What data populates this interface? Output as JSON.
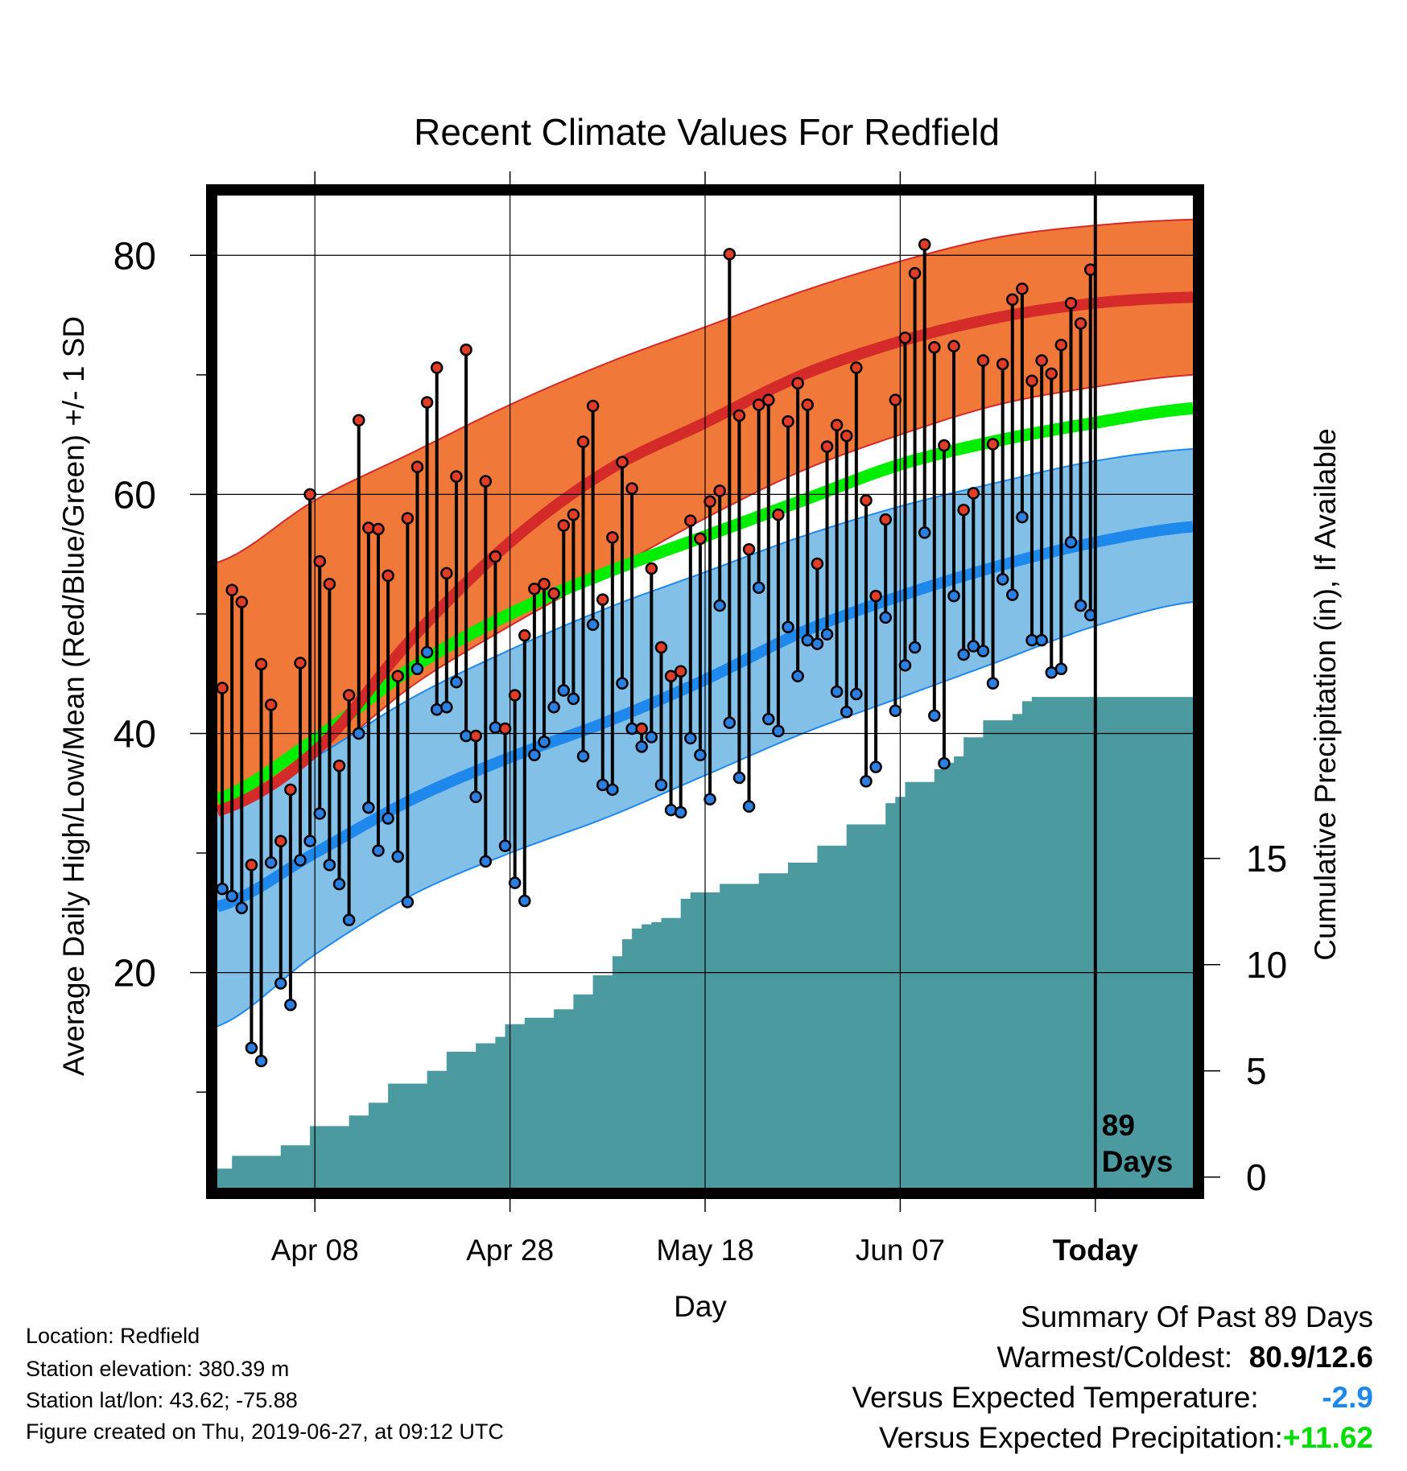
{
  "chart_data": {
    "type": "line",
    "title": "Recent Climate Values For Redfield",
    "xlabel": "Day",
    "ylabel": "Average Daily High/Low/Mean (Red/Blue/Green) +/- 1 SD",
    "y2label": "Cumulative Precipitation (in), If Available",
    "x_tick_labels": [
      "Apr 08",
      "Apr 28",
      "May 18",
      "Jun 07",
      "Today"
    ],
    "x_tick_days": [
      10,
      30,
      50,
      70,
      90
    ],
    "xlim": [
      0,
      100
    ],
    "y_ticks": [
      20,
      40,
      60,
      80
    ],
    "ylim": [
      2,
      85
    ],
    "y2_ticks": [
      0,
      5,
      10,
      15
    ],
    "y2lim": [
      -0.5,
      46.2
    ],
    "today_day": 90,
    "today_label": "89 Days",
    "grid": true,
    "colors": {
      "high_band": "#f07838",
      "high_mean": "#d42a2a",
      "low_band": "#82c0e8",
      "low_mean": "#1e88ec",
      "mean_line": "#00ee00",
      "precip": "#4a9aa0",
      "high_dot": "#e03c28",
      "low_dot": "#2a7fe0"
    },
    "normals": {
      "days": [
        0,
        10,
        20,
        30,
        40,
        50,
        60,
        70,
        80,
        90,
        100
      ],
      "high_mean": [
        33.5,
        38.5,
        48.0,
        56.0,
        62.0,
        66.0,
        70.0,
        72.8,
        74.8,
        76.0,
        76.5
      ],
      "high_upper": [
        54.3,
        59.5,
        63.5,
        67.5,
        71.0,
        74.0,
        77.0,
        79.5,
        81.5,
        82.5,
        83.0
      ],
      "high_lower": [
        33.0,
        37.5,
        44.0,
        49.0,
        53.5,
        58.0,
        62.0,
        65.0,
        67.5,
        69.0,
        70.0
      ],
      "low_mean": [
        25.5,
        30.0,
        34.5,
        38.0,
        41.0,
        44.5,
        48.5,
        51.5,
        54.0,
        56.0,
        57.3
      ],
      "low_upper": [
        33.5,
        38.0,
        43.0,
        47.0,
        50.5,
        53.5,
        56.5,
        59.0,
        61.0,
        62.8,
        63.8
      ],
      "low_lower": [
        15.5,
        21.5,
        26.5,
        30.0,
        33.0,
        36.5,
        40.0,
        43.0,
        46.0,
        49.0,
        51.0
      ],
      "mean": [
        34.5,
        39.5,
        45.5,
        50.0,
        53.5,
        56.5,
        59.5,
        62.5,
        64.5,
        66.0,
        67.2
      ]
    },
    "series": [
      {
        "name": "High",
        "values": [
          43.8,
          52.0,
          51.0,
          29.0,
          45.8,
          42.4,
          31.0,
          35.3,
          45.9,
          60.0,
          54.4,
          52.5,
          37.3,
          43.2,
          66.2,
          57.2,
          57.1,
          53.2,
          44.8,
          58.0,
          62.3,
          67.7,
          70.6,
          53.4,
          61.5,
          72.1,
          39.8,
          61.1,
          54.8,
          40.4,
          43.2,
          48.2,
          52.1,
          52.5,
          51.7,
          57.4,
          58.3,
          64.4,
          67.4,
          51.2,
          56.4,
          62.7,
          60.5,
          40.4,
          53.8,
          47.2,
          44.8,
          45.2,
          57.8,
          56.3,
          59.4,
          60.3,
          80.1,
          66.6,
          55.4,
          67.5,
          67.9,
          58.3,
          66.1,
          69.3,
          67.5,
          54.2,
          64.0,
          65.8,
          64.9,
          70.6,
          59.5,
          51.5,
          57.9,
          67.9,
          73.1,
          78.5,
          80.9,
          72.3,
          64.1,
          72.4,
          58.7,
          60.1,
          71.2,
          64.2,
          70.9,
          76.3,
          77.2,
          69.5,
          71.2,
          70.1,
          72.5,
          76.0,
          74.3,
          78.8
        ]
      },
      {
        "name": "Low",
        "values": [
          27.0,
          26.4,
          25.4,
          13.7,
          12.6,
          29.2,
          19.1,
          17.3,
          29.4,
          31.0,
          33.3,
          29.0,
          27.4,
          24.4,
          40.0,
          33.8,
          30.2,
          32.9,
          29.7,
          25.9,
          45.4,
          46.8,
          42.0,
          42.2,
          44.3,
          39.8,
          34.7,
          29.3,
          40.5,
          30.6,
          27.5,
          26.0,
          38.2,
          39.3,
          42.2,
          43.6,
          42.9,
          38.1,
          49.1,
          35.7,
          35.3,
          44.2,
          40.4,
          38.9,
          39.7,
          35.7,
          33.6,
          33.4,
          39.6,
          38.2,
          34.5,
          50.7,
          40.9,
          36.3,
          33.9,
          52.2,
          41.2,
          40.2,
          48.9,
          44.8,
          47.8,
          47.5,
          48.3,
          43.5,
          41.8,
          43.3,
          36.0,
          37.2,
          49.7,
          41.9,
          45.7,
          47.2,
          56.8,
          41.5,
          37.5,
          51.5,
          46.6,
          47.3,
          46.9,
          44.2,
          52.9,
          51.6,
          58.1,
          47.8,
          47.8,
          45.1,
          45.4,
          56.0,
          50.7,
          49.9
        ]
      },
      {
        "name": "Cumulative Precipitation",
        "days": [
          0,
          1.5,
          2.5,
          6.5,
          7.5,
          9.5,
          10.5,
          13.5,
          15.5,
          16.5,
          17.5,
          18.5,
          21.5,
          23.5,
          26.5,
          28.5,
          29.5,
          31.5,
          34.5,
          35.5,
          36.5,
          38.5,
          39.5,
          40.5,
          41.5,
          42.5,
          43.5,
          44.5,
          45.5,
          46.5,
          47.5,
          48.5,
          49.5,
          50.5,
          51.5,
          52.5,
          55.5,
          56.5,
          58.5,
          59.5,
          61.5,
          63.5,
          64.5,
          66.5,
          67.5,
          68.5,
          69.5,
          70.5,
          73.5,
          74.5,
          75.5,
          76.5,
          77.5,
          78.5,
          79.5,
          81.5,
          82.5,
          83.5,
          89.5,
          100
        ],
        "values": [
          0.4,
          1.0,
          1.0,
          1.5,
          1.5,
          2.4,
          2.4,
          2.9,
          3.5,
          3.5,
          4.4,
          4.4,
          5.0,
          5.9,
          6.3,
          6.6,
          7.2,
          7.5,
          7.9,
          7.9,
          8.6,
          9.5,
          9.5,
          10.4,
          11.2,
          11.7,
          11.9,
          12.0,
          12.2,
          12.2,
          13.1,
          13.4,
          13.4,
          13.4,
          13.8,
          13.8,
          14.3,
          14.3,
          14.8,
          14.8,
          15.6,
          15.6,
          16.6,
          16.6,
          16.6,
          17.6,
          17.9,
          18.6,
          19.2,
          19.5,
          19.8,
          20.7,
          20.7,
          21.5,
          21.5,
          21.8,
          22.4,
          22.6,
          22.6,
          22.6
        ]
      }
    ]
  },
  "footer": {
    "location": "Location: Redfield",
    "elevation": "Station elevation: 380.39 m",
    "latlon": "Station lat/lon: 43.62; -75.88",
    "created": "Figure created on Thu, 2019-06-27, at 09:12 UTC"
  },
  "summary": {
    "title": "Summary Of Past 89 Days",
    "warmest_coldest_label": "Warmest/Coldest:",
    "warmest_coldest_value": "80.9/12.6",
    "temp_label": "Versus Expected Temperature:",
    "temp_value": "-2.9",
    "temp_color": "#1e88ec",
    "precip_label": "Versus Expected Precipitation:",
    "precip_value": "+11.62",
    "precip_color": "#00dd00"
  }
}
